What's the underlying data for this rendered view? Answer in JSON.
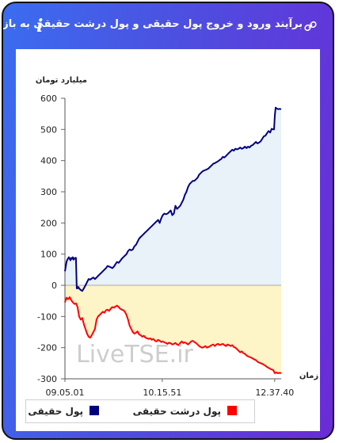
{
  "header": {
    "title": "برآیند ورود و خروج پول حقیقی و پول درشت حقیقی به بازار",
    "info_glyph": "i",
    "link_icon": "link-icon"
  },
  "chart_data": {
    "type": "area",
    "ylabel": "میلیارد تومان",
    "xlabel": "زمان",
    "ylim": [
      -300,
      600
    ],
    "y_ticks": [
      600,
      500,
      400,
      300,
      200,
      100,
      0,
      -100,
      -200,
      -300
    ],
    "x_tick_labels": [
      "09.05.01",
      "10.15.51",
      "12.37.40"
    ],
    "watermark": "LiveTSE.ir",
    "grid": false,
    "legend_position": "bottom",
    "series": [
      {
        "name": "پول حقیقی",
        "color": "#000080",
        "fill": "#e8f2f8",
        "points": [
          [
            0,
            45
          ],
          [
            2,
            75
          ],
          [
            3,
            82
          ],
          [
            5,
            90
          ],
          [
            6,
            85
          ],
          [
            7,
            80
          ],
          [
            8,
            88
          ],
          [
            9,
            85
          ],
          [
            10,
            90
          ],
          [
            11,
            82
          ],
          [
            12,
            86
          ],
          [
            13,
            88
          ],
          [
            14,
            88
          ],
          [
            15,
            -10
          ],
          [
            16,
            -10
          ],
          [
            17,
            -5
          ],
          [
            18,
            -10
          ],
          [
            20,
            -15
          ],
          [
            22,
            -18
          ],
          [
            24,
            -10
          ],
          [
            26,
            0
          ],
          [
            28,
            10
          ],
          [
            30,
            20
          ],
          [
            32,
            18
          ],
          [
            34,
            22
          ],
          [
            36,
            25
          ],
          [
            38,
            20
          ],
          [
            40,
            25
          ],
          [
            42,
            30
          ],
          [
            44,
            35
          ],
          [
            46,
            40
          ],
          [
            48,
            45
          ],
          [
            50,
            50
          ],
          [
            52,
            55
          ],
          [
            54,
            62
          ],
          [
            56,
            60
          ],
          [
            58,
            58
          ],
          [
            60,
            55
          ],
          [
            62,
            60
          ],
          [
            64,
            68
          ],
          [
            66,
            75
          ],
          [
            68,
            72
          ],
          [
            70,
            78
          ],
          [
            72,
            85
          ],
          [
            74,
            90
          ],
          [
            76,
            95
          ],
          [
            78,
            100
          ],
          [
            80,
            110
          ],
          [
            82,
            115
          ],
          [
            84,
            112
          ],
          [
            86,
            115
          ],
          [
            88,
            125
          ],
          [
            90,
            130
          ],
          [
            92,
            140
          ],
          [
            94,
            150
          ],
          [
            96,
            155
          ],
          [
            98,
            160
          ],
          [
            100,
            165
          ],
          [
            102,
            170
          ],
          [
            104,
            175
          ],
          [
            106,
            180
          ],
          [
            108,
            185
          ],
          [
            110,
            190
          ],
          [
            112,
            195
          ],
          [
            114,
            200
          ],
          [
            116,
            205
          ],
          [
            118,
            210
          ],
          [
            120,
            200
          ],
          [
            122,
            215
          ],
          [
            124,
            225
          ],
          [
            126,
            230
          ],
          [
            128,
            228
          ],
          [
            130,
            230
          ],
          [
            132,
            235
          ],
          [
            134,
            240
          ],
          [
            136,
            225
          ],
          [
            138,
            230
          ],
          [
            140,
            255
          ],
          [
            142,
            245
          ],
          [
            144,
            250
          ],
          [
            146,
            255
          ],
          [
            148,
            265
          ],
          [
            150,
            275
          ],
          [
            152,
            290
          ],
          [
            154,
            300
          ],
          [
            156,
            315
          ],
          [
            158,
            325
          ],
          [
            160,
            330
          ],
          [
            162,
            335
          ],
          [
            164,
            335
          ],
          [
            166,
            340
          ],
          [
            168,
            345
          ],
          [
            170,
            355
          ],
          [
            172,
            360
          ],
          [
            174,
            365
          ],
          [
            176,
            368
          ],
          [
            178,
            370
          ],
          [
            180,
            372
          ],
          [
            182,
            375
          ],
          [
            184,
            380
          ],
          [
            186,
            385
          ],
          [
            188,
            390
          ],
          [
            190,
            392
          ],
          [
            192,
            395
          ],
          [
            194,
            398
          ],
          [
            196,
            402
          ],
          [
            198,
            405
          ],
          [
            200,
            412
          ],
          [
            202,
            410
          ],
          [
            204,
            415
          ],
          [
            206,
            420
          ],
          [
            208,
            425
          ],
          [
            210,
            430
          ],
          [
            212,
            435
          ],
          [
            214,
            432
          ],
          [
            216,
            438
          ],
          [
            218,
            436
          ],
          [
            220,
            438
          ],
          [
            222,
            442
          ],
          [
            224,
            438
          ],
          [
            226,
            440
          ],
          [
            228,
            445
          ],
          [
            230,
            440
          ],
          [
            232,
            445
          ],
          [
            234,
            442
          ],
          [
            236,
            448
          ],
          [
            238,
            450
          ],
          [
            240,
            455
          ],
          [
            242,
            460
          ],
          [
            244,
            455
          ],
          [
            246,
            458
          ],
          [
            248,
            462
          ],
          [
            250,
            470
          ],
          [
            252,
            478
          ],
          [
            254,
            480
          ],
          [
            256,
            488
          ],
          [
            258,
            495
          ],
          [
            260,
            490
          ],
          [
            262,
            502
          ],
          [
            264,
            500
          ],
          [
            265,
            500
          ],
          [
            266,
            545
          ],
          [
            267,
            570
          ],
          [
            268,
            568
          ],
          [
            270,
            565
          ],
          [
            272,
            566
          ],
          [
            274,
            565
          ]
        ]
      },
      {
        "name": "پول درشت حقیقی",
        "color": "#ff0000",
        "fill": "#fdf4c8",
        "points": [
          [
            0,
            -55
          ],
          [
            2,
            -40
          ],
          [
            4,
            -45
          ],
          [
            6,
            -38
          ],
          [
            8,
            -48
          ],
          [
            10,
            -55
          ],
          [
            12,
            -60
          ],
          [
            14,
            -58
          ],
          [
            16,
            -70
          ],
          [
            18,
            -100
          ],
          [
            20,
            -110
          ],
          [
            22,
            -105
          ],
          [
            24,
            -125
          ],
          [
            26,
            -140
          ],
          [
            28,
            -155
          ],
          [
            30,
            -165
          ],
          [
            32,
            -168
          ],
          [
            34,
            -160
          ],
          [
            36,
            -150
          ],
          [
            38,
            -140
          ],
          [
            40,
            -110
          ],
          [
            42,
            -100
          ],
          [
            44,
            -95
          ],
          [
            46,
            -90
          ],
          [
            48,
            -85
          ],
          [
            50,
            -88
          ],
          [
            52,
            -80
          ],
          [
            54,
            -78
          ],
          [
            56,
            -82
          ],
          [
            58,
            -75
          ],
          [
            60,
            -70
          ],
          [
            62,
            -72
          ],
          [
            64,
            -68
          ],
          [
            66,
            -65
          ],
          [
            68,
            -70
          ],
          [
            70,
            -75
          ],
          [
            72,
            -78
          ],
          [
            74,
            -80
          ],
          [
            76,
            -85
          ],
          [
            78,
            -95
          ],
          [
            80,
            -110
          ],
          [
            82,
            -130
          ],
          [
            84,
            -140
          ],
          [
            86,
            -150
          ],
          [
            88,
            -155
          ],
          [
            90,
            -152
          ],
          [
            92,
            -148
          ],
          [
            94,
            -158
          ],
          [
            96,
            -160
          ],
          [
            98,
            -165
          ],
          [
            100,
            -162
          ],
          [
            102,
            -168
          ],
          [
            104,
            -170
          ],
          [
            106,
            -172
          ],
          [
            108,
            -170
          ],
          [
            110,
            -175
          ],
          [
            112,
            -172
          ],
          [
            114,
            -178
          ],
          [
            116,
            -180
          ],
          [
            118,
            -175
          ],
          [
            120,
            -178
          ],
          [
            122,
            -182
          ],
          [
            124,
            -180
          ],
          [
            126,
            -183
          ],
          [
            128,
            -185
          ],
          [
            130,
            -188
          ],
          [
            132,
            -184
          ],
          [
            134,
            -186
          ],
          [
            136,
            -190
          ],
          [
            138,
            -188
          ],
          [
            140,
            -185
          ],
          [
            142,
            -190
          ],
          [
            144,
            -192
          ],
          [
            146,
            -185
          ],
          [
            148,
            -180
          ],
          [
            150,
            -185
          ],
          [
            152,
            -183
          ],
          [
            154,
            -186
          ],
          [
            156,
            -190
          ],
          [
            158,
            -185
          ],
          [
            160,
            -180
          ],
          [
            162,
            -178
          ],
          [
            164,
            -182
          ],
          [
            166,
            -185
          ],
          [
            168,
            -190
          ],
          [
            170,
            -195
          ],
          [
            172,
            -198
          ],
          [
            174,
            -200
          ],
          [
            176,
            -198
          ],
          [
            178,
            -195
          ],
          [
            180,
            -200
          ],
          [
            182,
            -198
          ],
          [
            184,
            -195
          ],
          [
            186,
            -192
          ],
          [
            188,
            -190
          ],
          [
            190,
            -195
          ],
          [
            192,
            -190
          ],
          [
            194,
            -188
          ],
          [
            196,
            -192
          ],
          [
            198,
            -190
          ],
          [
            200,
            -188
          ],
          [
            202,
            -192
          ],
          [
            204,
            -195
          ],
          [
            206,
            -190
          ],
          [
            208,
            -192
          ],
          [
            210,
            -195
          ],
          [
            212,
            -192
          ],
          [
            214,
            -198
          ],
          [
            216,
            -200
          ],
          [
            218,
            -205
          ],
          [
            220,
            -210
          ],
          [
            222,
            -215
          ],
          [
            224,
            -212
          ],
          [
            226,
            -218
          ],
          [
            228,
            -220
          ],
          [
            230,
            -225
          ],
          [
            232,
            -228
          ],
          [
            234,
            -230
          ],
          [
            236,
            -232
          ],
          [
            238,
            -235
          ],
          [
            240,
            -238
          ],
          [
            242,
            -240
          ],
          [
            244,
            -245
          ],
          [
            246,
            -248
          ],
          [
            248,
            -250
          ],
          [
            250,
            -252
          ],
          [
            252,
            -255
          ],
          [
            254,
            -258
          ],
          [
            256,
            -262
          ],
          [
            258,
            -265
          ],
          [
            260,
            -268
          ],
          [
            262,
            -270
          ],
          [
            264,
            -272
          ],
          [
            266,
            -282
          ],
          [
            268,
            -280
          ],
          [
            270,
            -282
          ],
          [
            272,
            -281
          ],
          [
            274,
            -282
          ]
        ]
      }
    ]
  },
  "legend": {
    "items": [
      {
        "label": "پول حقیقی",
        "color": "#000080"
      },
      {
        "label": "پول درشت حقیقی",
        "color": "#ff0000"
      }
    ]
  }
}
